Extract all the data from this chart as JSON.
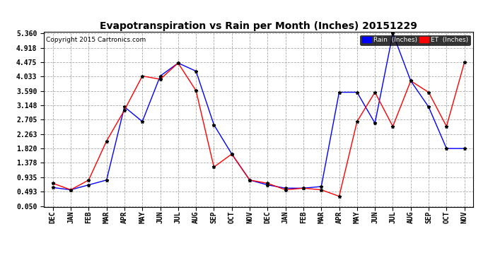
{
  "title": "Evapotranspiration vs Rain per Month (Inches) 20151229",
  "copyright": "Copyright 2015 Cartronics.com",
  "months": [
    "DEC",
    "JAN",
    "FEB",
    "MAR",
    "APR",
    "MAY",
    "JUN",
    "JUL",
    "AUG",
    "SEP",
    "OCT",
    "NOV",
    "DEC",
    "JAN",
    "FEB",
    "MAR",
    "APR",
    "MAY",
    "JUN",
    "JUL",
    "AUG",
    "SEP",
    "OCT",
    "NOV"
  ],
  "rain": [
    0.62,
    0.55,
    0.7,
    0.85,
    3.1,
    2.65,
    4.05,
    4.45,
    4.2,
    2.55,
    1.65,
    0.85,
    0.7,
    0.6,
    0.6,
    0.65,
    3.55,
    3.55,
    2.6,
    5.36,
    3.9,
    3.1,
    1.82,
    1.82
  ],
  "et": [
    0.75,
    0.55,
    0.85,
    2.05,
    3.0,
    4.05,
    3.95,
    4.45,
    3.6,
    1.25,
    1.65,
    0.85,
    0.75,
    0.55,
    0.6,
    0.55,
    0.35,
    2.65,
    3.55,
    2.5,
    3.9,
    3.55,
    2.5,
    4.47
  ],
  "rain_color": "blue",
  "et_color": "red",
  "yticks": [
    0.05,
    0.493,
    0.935,
    1.378,
    1.82,
    2.263,
    2.705,
    3.148,
    3.59,
    4.033,
    4.475,
    4.918,
    5.36
  ],
  "ymin": 0.05,
  "ymax": 5.36,
  "background": "#ffffff",
  "grid_color": "#aaaaaa",
  "legend_rain_label": "Rain  (Inches)",
  "legend_et_label": "ET  (Inches)",
  "title_fontsize": 10,
  "axis_fontsize": 7,
  "copyright_fontsize": 6.5,
  "fig_width": 6.9,
  "fig_height": 3.75,
  "fig_dpi": 100
}
